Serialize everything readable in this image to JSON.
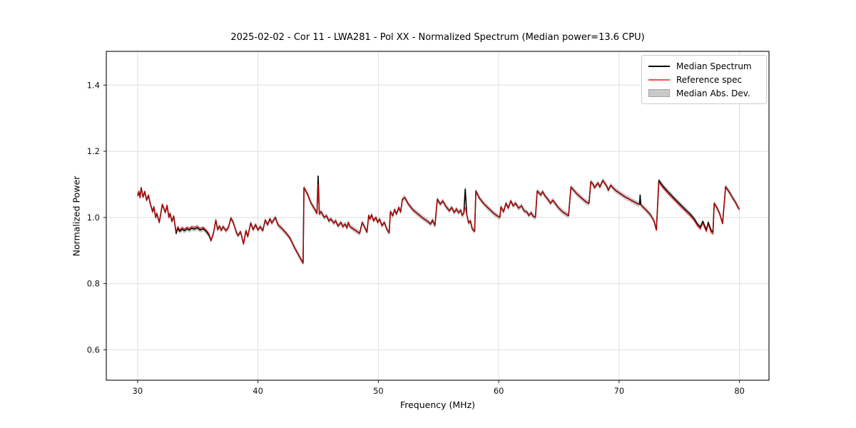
{
  "figure": {
    "title": "2025-02-02 - Cor 11 - LWA281 - Pol XX - Normalized Spectrum (Median power=13.6 CPU)",
    "xlabel": "Frequency (MHz)",
    "ylabel": "Normalized Power"
  },
  "legend": {
    "entries": [
      {
        "label": "Median Spectrum",
        "type": "line",
        "color": "#000000"
      },
      {
        "label": "Reference spec",
        "type": "line",
        "color": "#ff4d4d"
      },
      {
        "label": "Median Abs. Dev.",
        "type": "patch",
        "color": "#c9c9c9",
        "edge_color": "#a3a3a3"
      }
    ]
  },
  "chart_data": {
    "type": "line",
    "title": "2025-02-02 - Cor 11 - LWA281 - Pol XX - Normalized Spectrum (Median power=13.6 CPU)",
    "xlabel": "Frequency (MHz)",
    "ylabel": "Normalized Power",
    "xlim": [
      27.4,
      82.45
    ],
    "ylim": [
      0.508,
      1.502
    ],
    "xticks": [
      30,
      40,
      50,
      60,
      70,
      80
    ],
    "yticks": [
      0.6,
      0.8,
      1.0,
      1.2,
      1.4
    ],
    "grid": true,
    "grid_color": "#dedede",
    "legend_position": "upper right",
    "colors": {
      "median": "#000000",
      "reference": "rgba(255,0,0,0.7)",
      "mad_band": "#c0c0c0",
      "spine": "#1a1a1a"
    },
    "series": [
      {
        "name": "Median Spectrum",
        "color": "#000000",
        "points": [
          [
            30.0,
            1.065
          ],
          [
            30.1,
            1.078
          ],
          [
            30.2,
            1.06
          ],
          [
            30.3,
            1.09
          ],
          [
            30.45,
            1.062
          ],
          [
            30.6,
            1.078
          ],
          [
            30.75,
            1.052
          ],
          [
            30.9,
            1.067
          ],
          [
            31.05,
            1.042
          ],
          [
            31.25,
            1.017
          ],
          [
            31.35,
            1.032
          ],
          [
            31.5,
            1.0
          ],
          [
            31.6,
            1.012
          ],
          [
            31.8,
            0.985
          ],
          [
            32.05,
            1.039
          ],
          [
            32.2,
            1.026
          ],
          [
            32.3,
            1.015
          ],
          [
            32.45,
            1.036
          ],
          [
            32.6,
            1.0
          ],
          [
            32.7,
            1.012
          ],
          [
            32.85,
            0.988
          ],
          [
            33.0,
            1.004
          ],
          [
            33.2,
            0.952
          ],
          [
            33.35,
            0.968
          ],
          [
            33.5,
            0.958
          ],
          [
            33.7,
            0.965
          ],
          [
            33.9,
            0.96
          ],
          [
            34.1,
            0.966
          ],
          [
            34.3,
            0.962
          ],
          [
            34.5,
            0.968
          ],
          [
            34.7,
            0.965
          ],
          [
            34.95,
            0.969
          ],
          [
            35.2,
            0.962
          ],
          [
            35.45,
            0.966
          ],
          [
            35.7,
            0.958
          ],
          [
            35.95,
            0.945
          ],
          [
            36.1,
            0.93
          ],
          [
            36.3,
            0.952
          ],
          [
            36.5,
            0.992
          ],
          [
            36.65,
            0.963
          ],
          [
            36.8,
            0.974
          ],
          [
            36.95,
            0.961
          ],
          [
            37.1,
            0.972
          ],
          [
            37.35,
            0.96
          ],
          [
            37.55,
            0.97
          ],
          [
            37.75,
            0.998
          ],
          [
            37.95,
            0.985
          ],
          [
            38.2,
            0.955
          ],
          [
            38.35,
            0.945
          ],
          [
            38.55,
            0.957
          ],
          [
            38.8,
            0.92
          ],
          [
            39.0,
            0.96
          ],
          [
            39.15,
            0.942
          ],
          [
            39.4,
            0.983
          ],
          [
            39.6,
            0.963
          ],
          [
            39.8,
            0.978
          ],
          [
            40.0,
            0.962
          ],
          [
            40.2,
            0.972
          ],
          [
            40.4,
            0.96
          ],
          [
            40.6,
            0.992
          ],
          [
            40.8,
            0.978
          ],
          [
            41.0,
            0.996
          ],
          [
            41.15,
            0.983
          ],
          [
            41.45,
            1.0
          ],
          [
            41.65,
            0.978
          ],
          [
            41.95,
            0.968
          ],
          [
            42.35,
            0.952
          ],
          [
            42.65,
            0.938
          ],
          [
            43.05,
            0.908
          ],
          [
            43.5,
            0.878
          ],
          [
            43.75,
            0.862
          ],
          [
            43.82,
            1.09
          ],
          [
            44.1,
            1.072
          ],
          [
            44.4,
            1.044
          ],
          [
            44.7,
            1.026
          ],
          [
            44.9,
            1.012
          ],
          [
            45.0,
            1.125
          ],
          [
            45.1,
            1.01
          ],
          [
            45.25,
            1.017
          ],
          [
            45.5,
            1.0
          ],
          [
            45.7,
            1.005
          ],
          [
            45.9,
            0.989
          ],
          [
            46.05,
            0.996
          ],
          [
            46.3,
            0.983
          ],
          [
            46.45,
            0.99
          ],
          [
            46.65,
            0.974
          ],
          [
            46.9,
            0.985
          ],
          [
            47.05,
            0.972
          ],
          [
            47.25,
            0.98
          ],
          [
            47.4,
            0.968
          ],
          [
            47.5,
            0.985
          ],
          [
            47.65,
            0.972
          ],
          [
            48.1,
            0.961
          ],
          [
            48.45,
            0.952
          ],
          [
            48.66,
            0.985
          ],
          [
            48.9,
            0.968
          ],
          [
            49.05,
            0.955
          ],
          [
            49.2,
            1.006
          ],
          [
            49.3,
            0.995
          ],
          [
            49.45,
            1.008
          ],
          [
            49.6,
            0.99
          ],
          [
            49.8,
            1.0
          ],
          [
            49.95,
            0.985
          ],
          [
            50.1,
            0.995
          ],
          [
            50.3,
            0.975
          ],
          [
            50.5,
            0.985
          ],
          [
            50.7,
            0.965
          ],
          [
            50.9,
            0.953
          ],
          [
            51.0,
            1.018
          ],
          [
            51.2,
            1.005
          ],
          [
            51.35,
            1.024
          ],
          [
            51.5,
            1.01
          ],
          [
            51.7,
            1.03
          ],
          [
            51.85,
            1.016
          ],
          [
            52.0,
            1.055
          ],
          [
            52.2,
            1.06
          ],
          [
            52.5,
            1.04
          ],
          [
            52.9,
            1.022
          ],
          [
            53.3,
            1.01
          ],
          [
            53.7,
            0.998
          ],
          [
            54.1,
            0.988
          ],
          [
            54.35,
            0.98
          ],
          [
            54.5,
            0.992
          ],
          [
            54.7,
            0.975
          ],
          [
            54.9,
            1.055
          ],
          [
            55.15,
            1.04
          ],
          [
            55.35,
            1.05
          ],
          [
            55.6,
            1.034
          ],
          [
            55.9,
            1.02
          ],
          [
            56.1,
            1.03
          ],
          [
            56.3,
            1.015
          ],
          [
            56.5,
            1.026
          ],
          [
            56.65,
            1.014
          ],
          [
            56.85,
            1.022
          ],
          [
            56.95,
            1.006
          ],
          [
            57.1,
            1.012
          ],
          [
            57.22,
            1.086
          ],
          [
            57.35,
            1.008
          ],
          [
            57.5,
            0.983
          ],
          [
            57.65,
            0.99
          ],
          [
            57.8,
            0.965
          ],
          [
            58.0,
            0.958
          ],
          [
            58.1,
            1.08
          ],
          [
            58.4,
            1.058
          ],
          [
            58.8,
            1.04
          ],
          [
            59.2,
            1.026
          ],
          [
            59.6,
            1.012
          ],
          [
            59.9,
            1.004
          ],
          [
            60.1,
            1.0
          ],
          [
            60.18,
            1.032
          ],
          [
            60.4,
            1.017
          ],
          [
            60.6,
            1.043
          ],
          [
            60.8,
            1.028
          ],
          [
            61.0,
            1.05
          ],
          [
            61.2,
            1.035
          ],
          [
            61.4,
            1.043
          ],
          [
            61.65,
            1.028
          ],
          [
            61.9,
            1.035
          ],
          [
            62.1,
            1.02
          ],
          [
            62.35,
            1.016
          ],
          [
            62.5,
            1.006
          ],
          [
            62.7,
            1.014
          ],
          [
            62.85,
            1.004
          ],
          [
            63.05,
            1.0
          ],
          [
            63.2,
            1.08
          ],
          [
            63.5,
            1.068
          ],
          [
            63.65,
            1.078
          ],
          [
            63.85,
            1.065
          ],
          [
            64.1,
            1.054
          ],
          [
            64.3,
            1.043
          ],
          [
            64.5,
            1.052
          ],
          [
            64.9,
            1.032
          ],
          [
            65.3,
            1.017
          ],
          [
            65.6,
            1.01
          ],
          [
            65.8,
            1.005
          ],
          [
            66.0,
            1.092
          ],
          [
            66.5,
            1.071
          ],
          [
            66.9,
            1.058
          ],
          [
            67.25,
            1.047
          ],
          [
            67.5,
            1.042
          ],
          [
            67.65,
            1.108
          ],
          [
            67.85,
            1.1
          ],
          [
            67.95,
            1.09
          ],
          [
            68.25,
            1.104
          ],
          [
            68.4,
            1.092
          ],
          [
            68.65,
            1.112
          ],
          [
            69.0,
            1.093
          ],
          [
            69.1,
            1.082
          ],
          [
            69.3,
            1.097
          ],
          [
            69.7,
            1.082
          ],
          [
            70.1,
            1.072
          ],
          [
            70.5,
            1.062
          ],
          [
            71.0,
            1.052
          ],
          [
            71.5,
            1.042
          ],
          [
            71.7,
            1.04
          ],
          [
            71.75,
            1.068
          ],
          [
            71.8,
            1.038
          ],
          [
            72.2,
            1.024
          ],
          [
            72.6,
            1.008
          ],
          [
            72.9,
            0.99
          ],
          [
            73.1,
            0.962
          ],
          [
            73.3,
            1.112
          ],
          [
            73.65,
            1.094
          ],
          [
            74.1,
            1.076
          ],
          [
            74.6,
            1.057
          ],
          [
            75.0,
            1.042
          ],
          [
            75.5,
            1.024
          ],
          [
            75.9,
            1.01
          ],
          [
            76.25,
            0.995
          ],
          [
            76.5,
            0.98
          ],
          [
            76.75,
            0.97
          ],
          [
            76.95,
            0.988
          ],
          [
            77.25,
            0.962
          ],
          [
            77.4,
            0.985
          ],
          [
            77.65,
            0.96
          ],
          [
            77.8,
            0.955
          ],
          [
            77.9,
            1.043
          ],
          [
            78.15,
            1.028
          ],
          [
            78.35,
            1.012
          ],
          [
            78.6,
            0.982
          ],
          [
            78.85,
            1.093
          ],
          [
            79.2,
            1.074
          ],
          [
            79.45,
            1.058
          ],
          [
            79.7,
            1.044
          ],
          [
            79.85,
            1.032
          ],
          [
            80.0,
            1.025
          ]
        ]
      },
      {
        "name": "Reference spec",
        "color": "rgba(255,0,0,0.7)",
        "derived_from": "Median Spectrum",
        "spike_overrides": [
          [
            45.0,
            1.1
          ],
          [
            57.22,
            1.03
          ],
          [
            71.75,
            1.038
          ]
        ],
        "offset_ranges": [
          [
            33.2,
            36.0,
            0.005
          ],
          [
            73.2,
            77.8,
            -0.006
          ]
        ]
      },
      {
        "name": "Median Abs. Dev.",
        "band": true,
        "color": "#c0c0c0",
        "halfwidth": 0.008
      }
    ]
  }
}
